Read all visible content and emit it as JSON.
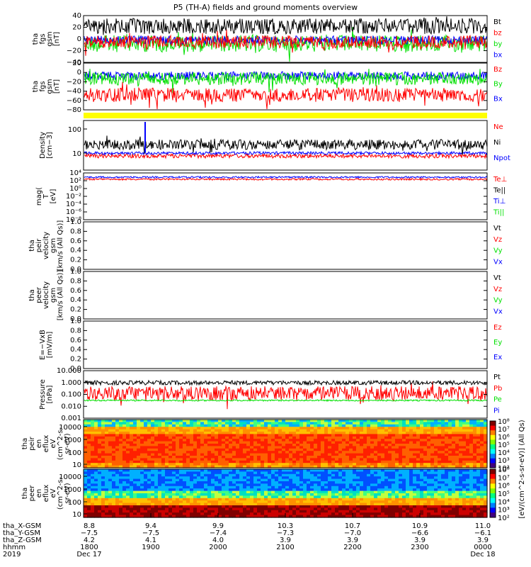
{
  "title": "P5 (TH-A) fields and ground moments overview",
  "colors": {
    "black": "#000000",
    "red": "#ff0000",
    "green": "#00e000",
    "blue": "#0000ff",
    "yellow": "#ffff00"
  },
  "chart_data": [
    {
      "type": "line",
      "id": "fgs",
      "ylabel": [
        "tha",
        "fgs",
        "gsm",
        "[nT]"
      ],
      "yticks": [
        "40",
        "20",
        "0",
        "−20",
        "−40"
      ],
      "ylim": [
        -40,
        40
      ],
      "series": [
        {
          "name": "Bt",
          "color": "#000000",
          "base": 22,
          "amp": 9
        },
        {
          "name": "bz",
          "color": "#ff0000",
          "base": -5,
          "amp": 8
        },
        {
          "name": "by",
          "color": "#00e000",
          "base": -8,
          "amp": 12
        },
        {
          "name": "bx",
          "color": "#0000ff",
          "base": -2,
          "amp": 6
        }
      ]
    },
    {
      "type": "line",
      "id": "fgs_angles",
      "ylabel": [
        "tha",
        "fgs",
        "gsm",
        "[nT]"
      ],
      "yticks": [
        "20",
        "0",
        "−20",
        "−40",
        "−60",
        "−80"
      ],
      "ylim": [
        -90,
        25
      ],
      "series": [
        {
          "name": "Bz",
          "color": "#ff0000",
          "base": -40,
          "amp": 12
        },
        {
          "name": "By",
          "color": "#00e000",
          "base": -5,
          "amp": 9
        },
        {
          "name": "Bx",
          "color": "#0000ff",
          "base": 0,
          "amp": 5
        }
      ]
    },
    {
      "type": "line",
      "id": "density",
      "log": true,
      "ylabel": [
        "Density",
        "[cm−3]"
      ],
      "yticks": [
        "100",
        "10"
      ],
      "series": [
        {
          "name": "Ne",
          "color": "#ff0000",
          "base": 9,
          "amp": 2
        },
        {
          "name": "Ni",
          "color": "#000000",
          "base": 28,
          "amp": 8
        },
        {
          "name": "Npot",
          "color": "#0000ff",
          "base": 11,
          "amp": 2
        }
      ]
    },
    {
      "type": "line",
      "id": "temp",
      "log": true,
      "ylabel": [
        "mag(",
        "T",
        "[eV]"
      ],
      "yticks": [
        "10⁴",
        "10²",
        "10⁰",
        "10⁻²",
        "10⁻⁴",
        "10⁻⁶",
        "10⁻⁸"
      ],
      "series": [
        {
          "name": "Te⊥",
          "color": "#ff0000"
        },
        {
          "name": "Te||",
          "color": "#000000"
        },
        {
          "name": "Ti⊥",
          "color": "#0000ff"
        },
        {
          "name": "Ti||",
          "color": "#00e000"
        }
      ]
    },
    {
      "type": "line",
      "id": "peir_velocity",
      "ylabel": [
        "tha",
        "peir",
        "velocity",
        "gsm",
        "[km/s (All Qs)]"
      ],
      "yticks": [
        "1.0",
        "0.8",
        "0.6",
        "0.4",
        "0.2",
        "0.0"
      ],
      "series": [
        {
          "name": "Vt",
          "color": "#000000"
        },
        {
          "name": "Vz",
          "color": "#ff0000"
        },
        {
          "name": "Vy",
          "color": "#00e000"
        },
        {
          "name": "Vx",
          "color": "#0000ff"
        }
      ]
    },
    {
      "type": "line",
      "id": "peer_velocity",
      "ylabel": [
        "tha",
        "peer",
        "velocity",
        "gsm",
        "[km/s (All Qs)]"
      ],
      "yticks": [
        "1.0",
        "0.8",
        "0.6",
        "0.4",
        "0.2",
        "0.0"
      ],
      "series": [
        {
          "name": "Vt",
          "color": "#000000"
        },
        {
          "name": "Vz",
          "color": "#ff0000"
        },
        {
          "name": "Vy",
          "color": "#00e000"
        },
        {
          "name": "Vx",
          "color": "#0000ff"
        }
      ]
    },
    {
      "type": "line",
      "id": "efield",
      "ylabel": [
        "E=−VxB",
        "[mV/m]"
      ],
      "yticks": [
        "1.0",
        "0.8",
        "0.6",
        "0.4",
        "0.2",
        "0.0"
      ],
      "series": [
        {
          "name": "Ez",
          "color": "#ff0000"
        },
        {
          "name": "Ey",
          "color": "#00e000"
        },
        {
          "name": "Ex",
          "color": "#0000ff"
        }
      ]
    },
    {
      "type": "line",
      "id": "pressure",
      "log": true,
      "ylabel": [
        "Pressure",
        "[nPa]"
      ],
      "yticks": [
        "10.000",
        "1.000",
        "0.100",
        "0.010",
        "0.001"
      ],
      "series": [
        {
          "name": "Pt",
          "color": "#000000"
        },
        {
          "name": "Pb",
          "color": "#ff0000"
        },
        {
          "name": "Pe",
          "color": "#00e000"
        },
        {
          "name": "Pi",
          "color": "#0000ff"
        }
      ]
    },
    {
      "type": "heatmap",
      "id": "peir_eflux",
      "ylabel": [
        "tha",
        "peir",
        "en",
        "eflux",
        "eV",
        "(cm^2-s-",
        "sr-eV)"
      ],
      "yticks": [
        "10000",
        "1000",
        "100",
        "10"
      ]
    },
    {
      "type": "heatmap",
      "id": "peer_eflux",
      "ylabel": [
        "tha",
        "peer",
        "en",
        "eflux",
        "eV",
        "(cm^2-s-",
        "sr-eV)"
      ],
      "yticks": [
        "10000",
        "1000",
        "100",
        "10"
      ]
    }
  ],
  "colorbar": {
    "label": "[eV/(cm^2-s-sr-eV)] (All Qs)",
    "ticks1": [
      "10⁸",
      "10⁷",
      "10⁶",
      "10⁵",
      "10⁴",
      "10³",
      "10²"
    ],
    "ticks2": [
      "10⁸",
      "10⁷",
      "10⁶",
      "10⁵",
      "10⁴",
      "10³",
      "10²"
    ]
  },
  "xaxis": {
    "row_labels": [
      "tha_X-GSM",
      "tha_Y-GSM",
      "tha_Z-GSM",
      "hhmm",
      "2019"
    ],
    "columns": [
      {
        "x": "8.8",
        "y": "−7.5",
        "z": "4.2",
        "t": "1800",
        "d": "Dec 17"
      },
      {
        "x": "9.4",
        "y": "−7.5",
        "z": "4.1",
        "t": "1900",
        "d": ""
      },
      {
        "x": "9.9",
        "y": "−7.4",
        "z": "4.0",
        "t": "2000",
        "d": ""
      },
      {
        "x": "10.3",
        "y": "−7.3",
        "z": "3.9",
        "t": "2100",
        "d": ""
      },
      {
        "x": "10.7",
        "y": "−7.0",
        "z": "3.9",
        "t": "2200",
        "d": ""
      },
      {
        "x": "10.9",
        "y": "−6.6",
        "z": "3.9",
        "t": "2300",
        "d": ""
      },
      {
        "x": "11.0",
        "y": "−6.1",
        "z": "3.9",
        "t": "0000",
        "d": "Dec 18"
      }
    ]
  }
}
